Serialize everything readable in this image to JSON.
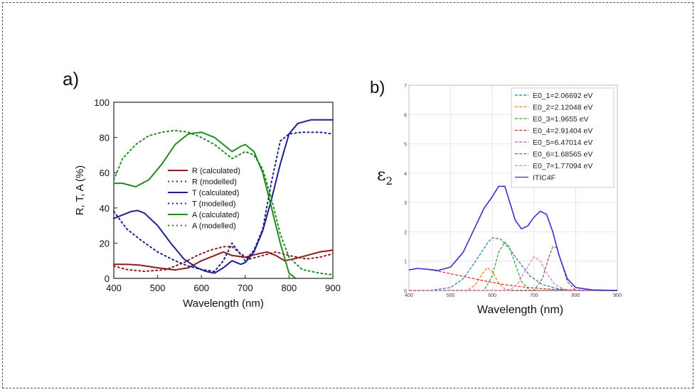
{
  "panel_a_label": "a)",
  "panel_b_label": "b)",
  "epsilon_symbol": "ε",
  "epsilon_sub": "2",
  "chart_data": [
    {
      "type": "line",
      "xlabel": "Wavelength (nm)",
      "ylabel": "R, T, A (%)",
      "xlim": [
        400,
        900
      ],
      "ylim": [
        0,
        100
      ],
      "xticks": [
        400,
        500,
        600,
        700,
        800,
        900
      ],
      "yticks": [
        0,
        20,
        40,
        60,
        80,
        100
      ],
      "legend_position": "center-left",
      "series": [
        {
          "name": "R (calculated)",
          "color": "#8b1a1a",
          "style": "solid",
          "x": [
            400,
            430,
            460,
            500,
            540,
            570,
            600,
            630,
            650,
            670,
            700,
            730,
            750,
            770,
            790,
            810,
            840,
            870,
            900
          ],
          "y": [
            8,
            8,
            7.5,
            6,
            4.8,
            6,
            10,
            13,
            15,
            13,
            12,
            14,
            15,
            13,
            10,
            11,
            13,
            15,
            16
          ]
        },
        {
          "name": "R (modelled)",
          "color": "#8b1a1a",
          "style": "dotted",
          "x": [
            400,
            430,
            470,
            520,
            560,
            590,
            620,
            650,
            670,
            690,
            710,
            740,
            770,
            800,
            840,
            870,
            900
          ],
          "y": [
            7,
            5,
            4,
            5,
            9,
            13,
            16,
            18,
            18,
            14,
            11,
            13,
            15,
            13,
            11,
            12,
            14
          ]
        },
        {
          "name": "T (calculated)",
          "color": "#1f1f8f",
          "style": "solid",
          "x": [
            400,
            420,
            440,
            455,
            470,
            500,
            530,
            560,
            590,
            610,
            630,
            650,
            670,
            690,
            700,
            720,
            740,
            760,
            780,
            800,
            820,
            850,
            880,
            900
          ],
          "y": [
            34,
            36,
            38,
            38.5,
            37,
            30,
            20,
            11,
            6,
            4,
            3,
            6,
            10,
            8,
            9,
            15,
            27,
            45,
            65,
            82,
            88,
            90,
            90,
            90
          ]
        },
        {
          "name": "T (modelled)",
          "color": "#1f1f8f",
          "style": "dotted",
          "x": [
            400,
            430,
            460,
            500,
            540,
            570,
            600,
            630,
            650,
            670,
            685,
            700,
            720,
            740,
            760,
            780,
            800,
            830,
            870,
            900
          ],
          "y": [
            38,
            28,
            22,
            15,
            10,
            7,
            5,
            4,
            10,
            20,
            15,
            10,
            16,
            28,
            55,
            78,
            82,
            83,
            83,
            82
          ]
        },
        {
          "name": "A (calculated)",
          "color": "#1e8c1e",
          "style": "solid",
          "x": [
            400,
            420,
            450,
            480,
            510,
            540,
            570,
            600,
            630,
            650,
            670,
            690,
            700,
            720,
            740,
            760,
            780,
            800,
            810,
            815
          ],
          "y": [
            54,
            54,
            52,
            56,
            65,
            76,
            82,
            83,
            80,
            76,
            72,
            75,
            76,
            72,
            60,
            40,
            20,
            3,
            1,
            0
          ]
        },
        {
          "name": "A (modelled)",
          "color": "#1e8c1e",
          "style": "dotted",
          "x": [
            400,
            420,
            450,
            480,
            510,
            540,
            570,
            600,
            630,
            650,
            670,
            700,
            720,
            740,
            760,
            780,
            800,
            830,
            870,
            900
          ],
          "y": [
            56,
            68,
            76,
            81,
            83,
            84,
            83,
            80,
            76,
            72,
            68,
            72,
            70,
            62,
            45,
            25,
            12,
            5,
            3,
            2
          ]
        }
      ]
    },
    {
      "type": "line",
      "xlabel": "Wavelength (nm)",
      "ylabel": "",
      "xlim": [
        400,
        900
      ],
      "ylim": [
        0,
        7
      ],
      "xticks": [
        400,
        500,
        600,
        700,
        800,
        900
      ],
      "yticks": [
        0,
        1,
        2,
        3,
        4,
        5,
        6,
        7
      ],
      "grid": true,
      "legend_position": "top-right",
      "series": [
        {
          "name": "E0_1=2.06692 eV",
          "color": "#1f77b4",
          "style": "dashed",
          "x": [
            400,
            450,
            500,
            530,
            560,
            590,
            600,
            620,
            640,
            660,
            690,
            720,
            760,
            800,
            850,
            900
          ],
          "y": [
            0,
            0,
            0.1,
            0.4,
            1.0,
            1.65,
            1.8,
            1.75,
            1.45,
            1.05,
            0.5,
            0.2,
            0.05,
            0,
            0,
            0
          ]
        },
        {
          "name": "E0_2=2.12048 eV",
          "color": "#ff7f0e",
          "style": "dashed",
          "x": [
            400,
            540,
            560,
            575,
            588,
            600,
            615,
            630,
            650,
            900
          ],
          "y": [
            0,
            0,
            0.2,
            0.55,
            0.78,
            0.65,
            0.25,
            0.05,
            0,
            0
          ]
        },
        {
          "name": "E0_3=1.9655 eV",
          "color": "#2ca02c",
          "style": "dashed",
          "x": [
            400,
            580,
            600,
            615,
            630,
            640,
            655,
            670,
            690,
            900
          ],
          "y": [
            0,
            0,
            0.5,
            1.3,
            1.65,
            1.5,
            0.9,
            0.3,
            0,
            0
          ]
        },
        {
          "name": "E0_4=2.91404 eV",
          "color": "#d62728",
          "style": "dashed",
          "x": [
            400,
            420,
            440,
            470,
            500,
            540,
            580,
            620,
            660,
            700,
            740,
            780,
            820,
            860,
            900
          ],
          "y": [
            0.7,
            0.75,
            0.73,
            0.66,
            0.57,
            0.45,
            0.33,
            0.22,
            0.14,
            0.08,
            0.04,
            0.02,
            0.01,
            0,
            0
          ]
        },
        {
          "name": "E0_5=6.47014 eV",
          "color": "#9467bd",
          "style": "dashed",
          "x": [
            400,
            500,
            600,
            700,
            800,
            900
          ],
          "y": [
            0,
            0,
            0,
            0,
            0,
            0
          ]
        },
        {
          "name": "E0_6=1.68565 eV",
          "color": "#8c564b",
          "style": "dashed",
          "x": [
            400,
            700,
            720,
            735,
            745,
            755,
            765,
            780,
            800,
            900
          ],
          "y": [
            0,
            0,
            0.4,
            1.1,
            1.5,
            1.45,
            1.0,
            0.3,
            0,
            0
          ]
        },
        {
          "name": "E0_7=1.77094 eV",
          "color": "#e377c2",
          "style": "dashed",
          "x": [
            400,
            640,
            660,
            680,
            700,
            715,
            730,
            750,
            780,
            900
          ],
          "y": [
            0,
            0,
            0.2,
            0.7,
            1.15,
            1.0,
            0.6,
            0.2,
            0,
            0
          ]
        },
        {
          "name": "ITIC4F",
          "color": "#3333cc",
          "style": "solid",
          "x": [
            400,
            420,
            440,
            470,
            500,
            530,
            560,
            580,
            600,
            615,
            630,
            640,
            655,
            670,
            685,
            700,
            715,
            730,
            745,
            760,
            780,
            800,
            840,
            900
          ],
          "y": [
            0.7,
            0.75,
            0.73,
            0.68,
            0.8,
            1.3,
            2.2,
            2.8,
            3.2,
            3.55,
            3.55,
            3.1,
            2.4,
            2.1,
            2.2,
            2.5,
            2.7,
            2.6,
            2.0,
            1.2,
            0.4,
            0.1,
            0.02,
            0
          ]
        }
      ]
    }
  ]
}
